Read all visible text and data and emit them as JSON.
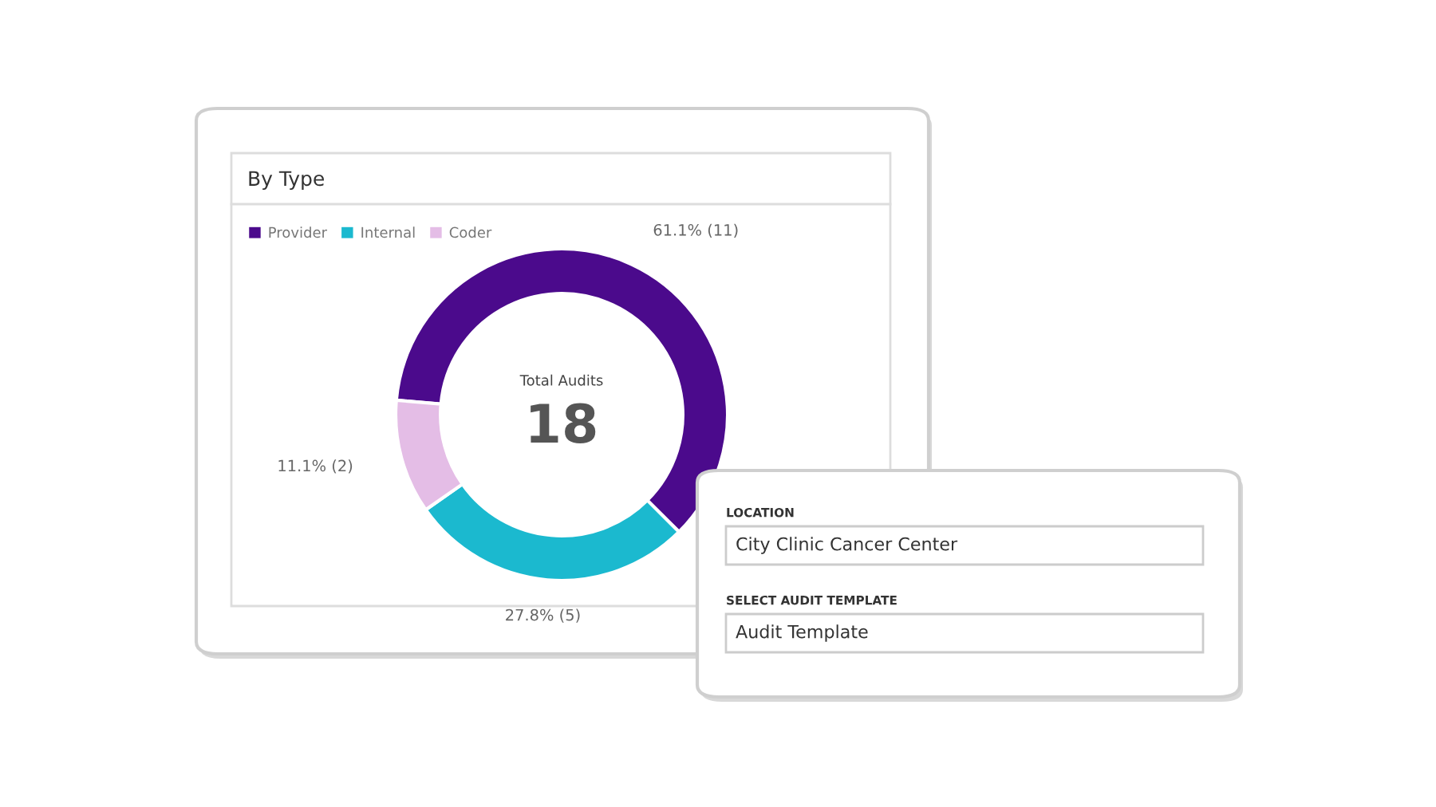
{
  "chart_data": {
    "type": "donut",
    "title": "By Type",
    "categories": [
      "Provider",
      "Internal",
      "Coder"
    ],
    "values": [
      11,
      5,
      2
    ],
    "colors": [
      "#4b0a8c",
      "#1bb9cf",
      "#e4bde6"
    ],
    "value_labels": [
      "61.1% (11)",
      "27.8% (5)",
      "11.1% (2)"
    ],
    "legend": "top left",
    "annotations": [
      "Total Audits",
      "18",
      "LOCATION",
      "City Clinic Cancer Center",
      "SELECT AUDIT TEMPLATE",
      "Audit Template"
    ]
  }
}
